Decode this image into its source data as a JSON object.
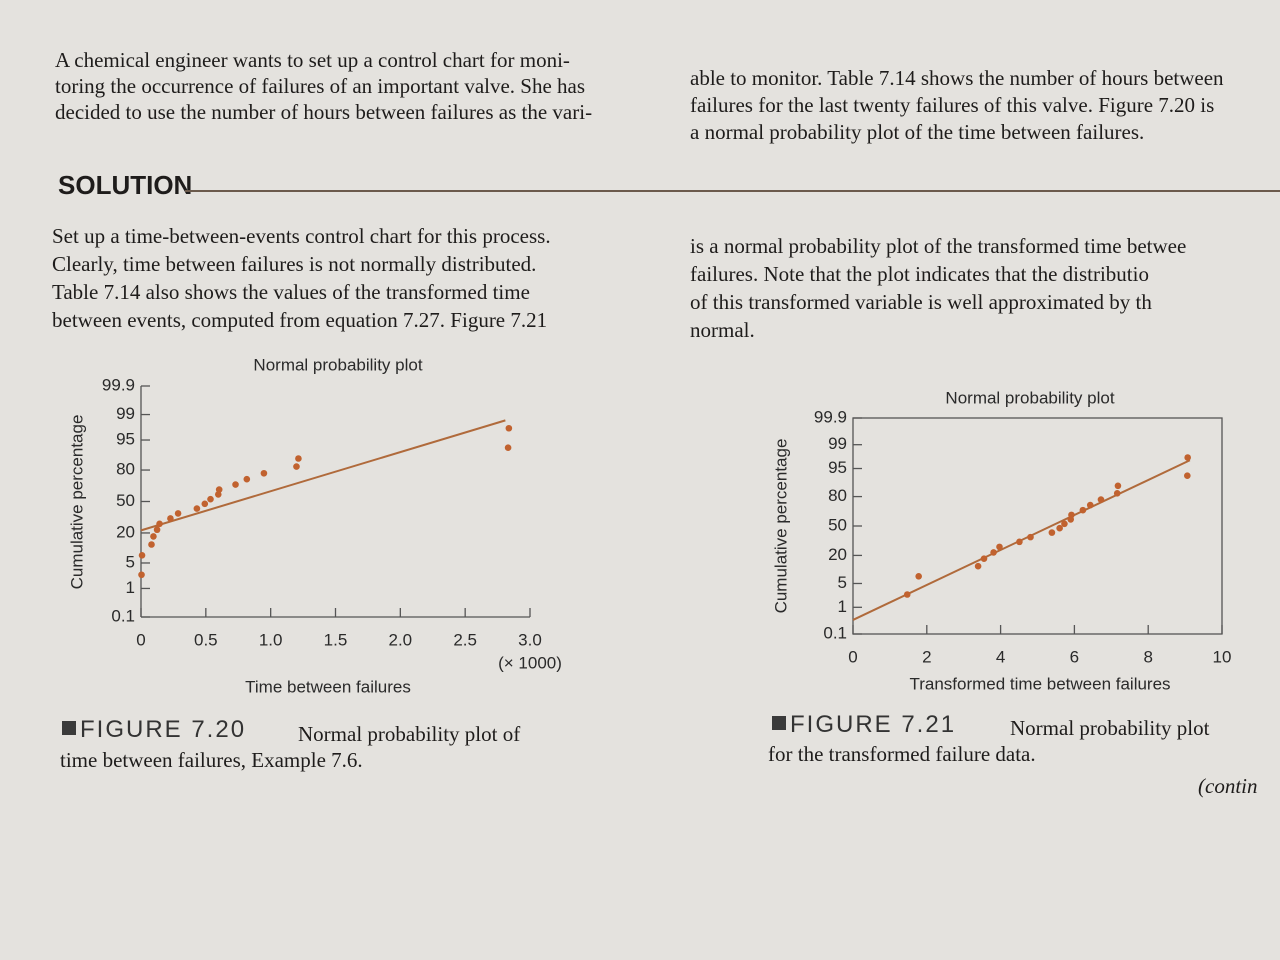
{
  "intro": {
    "left": [
      "A chemical engineer wants to set up a control chart for moni-",
      "toring the occurrence of failures of an important valve. She has",
      "decided to use the number of hours between failures as the vari-"
    ],
    "right": [
      "able to monitor. Table 7.14 shows the number of hours between",
      "failures for the last twenty failures of this valve. Figure 7.20 is",
      "a normal probability plot of the time between failures."
    ]
  },
  "solution": {
    "heading": "SOLUTION",
    "left": [
      "Set up a time-between-events control chart for this process.",
      "Clearly, time between failures is not normally distributed.",
      "Table 7.14 also shows the values of the transformed time",
      "between events, computed from equation 7.27. Figure 7.21"
    ],
    "right": [
      "is a normal probability plot of the transformed time betwee",
      "failures. Note that the plot indicates that the distributio",
      "of this transformed variable is well approximated by th",
      "normal."
    ]
  },
  "figures": [
    {
      "label": "FIGURE 7.20",
      "caption": [
        "Normal probability plot of",
        "time between failures, Example 7.6."
      ]
    },
    {
      "label": "FIGURE 7.21",
      "caption": [
        "Normal probability plot",
        "for the transformed failure data."
      ]
    }
  ],
  "footer": "(contin",
  "chart_data": [
    {
      "type": "scatter",
      "title": "Normal probability plot",
      "y_label": "Cumulative percentage",
      "x_label": "Time between failures",
      "x_unit": "(× 1000)",
      "yscale": "probability",
      "frame": "axes",
      "color": "#c1622f",
      "x": [
        0.004,
        0.008,
        0.081,
        0.096,
        0.124,
        0.143,
        0.227,
        0.286,
        0.431,
        0.492,
        0.536,
        0.596,
        0.603,
        0.729,
        0.816,
        0.948,
        1.199,
        1.214,
        2.831,
        2.837
      ],
      "values": [
        2.5,
        7.5,
        12.5,
        17.5,
        22.5,
        27.5,
        32.5,
        37.5,
        42.5,
        47.5,
        52.5,
        57.5,
        62.5,
        67.5,
        72.5,
        77.5,
        82.5,
        87.5,
        92.5,
        97.5
      ],
      "fit_line": {
        "x": [
          0,
          2.81
        ],
        "values": [
          22,
          98.5
        ],
        "color": "#b06a3b"
      },
      "xlim": [
        0,
        3
      ],
      "xticks": [
        0,
        0.5,
        {
          "value": 1,
          "label": "1.0"
        },
        1.5,
        {
          "value": 2,
          "label": "2.0"
        },
        2.5,
        {
          "value": 3,
          "label": "3.0"
        }
      ],
      "ylim": [
        0.1,
        99.9
      ],
      "yticks": [
        0.1,
        1,
        5,
        20,
        50,
        80,
        95,
        99,
        99.9
      ]
    },
    {
      "type": "scatter",
      "title": "Normal probability plot",
      "y_label": "Cumulative percentage",
      "x_label": "Transformed time between failures",
      "yscale": "probability",
      "frame": "box",
      "color": "#c1622f",
      "x": [
        1.47,
        1.78,
        3.39,
        3.55,
        3.81,
        3.97,
        4.51,
        4.81,
        5.39,
        5.6,
        5.73,
        5.9,
        5.92,
        6.23,
        6.43,
        6.72,
        7.16,
        7.18,
        9.06,
        9.07
      ],
      "values": [
        2.5,
        7.5,
        12.5,
        17.5,
        22.5,
        27.5,
        32.5,
        37.5,
        42.5,
        47.5,
        52.5,
        57.5,
        62.5,
        67.5,
        72.5,
        77.5,
        82.5,
        87.5,
        92.5,
        97.5
      ],
      "fit_line": {
        "x": [
          0,
          9.13
        ],
        "values": [
          0.36,
          97
        ],
        "color": "#b06a3b"
      },
      "xlim": [
        0,
        10
      ],
      "xticks": [
        0,
        2,
        4,
        6,
        8,
        10
      ],
      "ylim": [
        0.1,
        99.9
      ],
      "yticks": [
        0.1,
        1,
        5,
        20,
        50,
        80,
        95,
        99,
        99.9
      ]
    }
  ]
}
